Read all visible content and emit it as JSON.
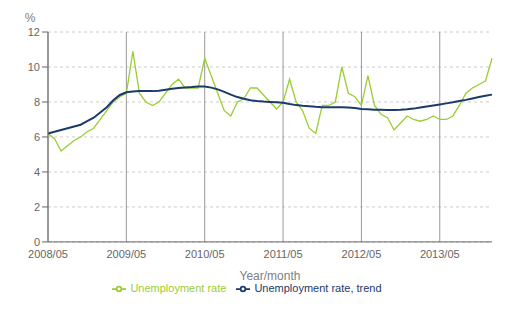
{
  "chart_data": {
    "type": "line",
    "ylabel": "%",
    "xlabel": "Year/month",
    "categories": [
      "2008/05",
      null,
      null,
      null,
      null,
      null,
      null,
      null,
      null,
      null,
      null,
      null,
      "2009/05",
      null,
      null,
      null,
      null,
      null,
      null,
      null,
      null,
      null,
      null,
      null,
      "2010/05",
      null,
      null,
      null,
      null,
      null,
      null,
      null,
      null,
      null,
      null,
      null,
      "2011/05",
      null,
      null,
      null,
      null,
      null,
      null,
      null,
      null,
      null,
      null,
      null,
      "2012/05",
      null,
      null,
      null,
      null,
      null,
      null,
      null,
      null,
      null,
      null,
      null,
      "2013/05",
      null,
      null,
      null,
      null,
      null,
      null,
      null,
      null
    ],
    "series": [
      {
        "name": "Unemployment rate",
        "color": "#9ACD32",
        "values": [
          6.2,
          5.9,
          5.2,
          5.5,
          5.8,
          6.0,
          6.3,
          6.5,
          7.0,
          7.5,
          8.0,
          8.3,
          8.5,
          10.9,
          8.5,
          8.0,
          7.8,
          8.0,
          8.5,
          9.0,
          9.3,
          8.8,
          8.8,
          8.8,
          10.5,
          9.5,
          8.5,
          7.5,
          7.2,
          8.0,
          8.2,
          8.8,
          8.8,
          8.4,
          8.0,
          7.6,
          8.0,
          9.3,
          8.0,
          7.5,
          6.5,
          6.2,
          7.8,
          7.8,
          8.0,
          10.0,
          8.5,
          8.3,
          7.8,
          9.5,
          7.8,
          7.3,
          7.1,
          6.4,
          6.8,
          7.2,
          7.0,
          6.9,
          7.0,
          7.2,
          7.0,
          7.0,
          7.2,
          7.8,
          8.5,
          8.8,
          9.0,
          9.2,
          10.5
        ]
      },
      {
        "name": "Unemployment rate, trend",
        "color": "#1a3a6b",
        "values": [
          6.2,
          6.3,
          6.4,
          6.5,
          6.6,
          6.7,
          6.9,
          7.1,
          7.4,
          7.7,
          8.1,
          8.4,
          8.55,
          8.6,
          8.62,
          8.62,
          8.62,
          8.64,
          8.7,
          8.75,
          8.8,
          8.83,
          8.85,
          8.88,
          8.88,
          8.82,
          8.72,
          8.58,
          8.42,
          8.28,
          8.18,
          8.1,
          8.05,
          8.02,
          8.0,
          7.98,
          7.95,
          7.88,
          7.82,
          7.78,
          7.75,
          7.72,
          7.7,
          7.7,
          7.7,
          7.7,
          7.68,
          7.65,
          7.6,
          7.58,
          7.56,
          7.55,
          7.54,
          7.54,
          7.55,
          7.58,
          7.62,
          7.68,
          7.74,
          7.8,
          7.86,
          7.92,
          7.98,
          8.05,
          8.12,
          8.2,
          8.28,
          8.35,
          8.42
        ]
      }
    ],
    "ylim": [
      0,
      12
    ],
    "yticks": [
      0,
      2,
      4,
      6,
      8,
      10,
      12
    ],
    "grid": true,
    "legend": "bottom"
  }
}
